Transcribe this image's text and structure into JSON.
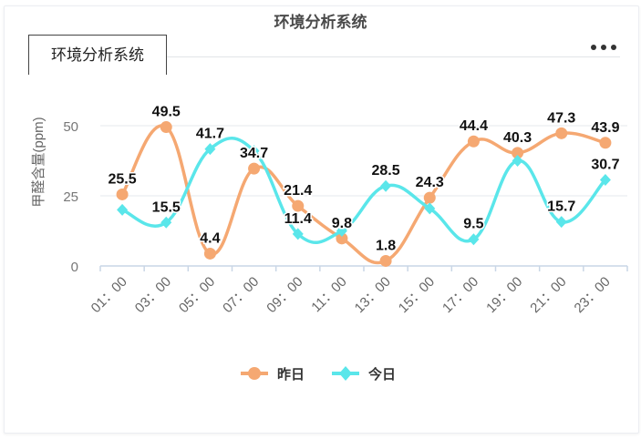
{
  "header": {
    "title": "环境分析系统"
  },
  "tab": {
    "label": "环境分析系统"
  },
  "chart_data": {
    "type": "line",
    "categories": [
      "01:00",
      "03:00",
      "05:00",
      "07:00",
      "09:00",
      "11:00",
      "13:00",
      "15:00",
      "17:00",
      "19:00",
      "21:00",
      "23:00"
    ],
    "tick_labels": [
      "01：00",
      "03：00",
      "05：00",
      "07：00",
      "09：00",
      "11：00",
      "13：00",
      "15：00",
      "17：00",
      "19：00",
      "21：00",
      "23：00"
    ],
    "ylabel": "甲醛含量(ppm)",
    "ylim": [
      0,
      50
    ],
    "yticks": [
      0,
      25,
      50
    ],
    "grid": true,
    "smooth": true,
    "legend_position": "bottom",
    "series": [
      {
        "name": "昨日",
        "color": "#f5a872",
        "marker": "circle",
        "values": [
          25.5,
          49.5,
          4.4,
          34.7,
          21.4,
          9.8,
          1.8,
          24.3,
          44.4,
          40.3,
          47.3,
          43.9
        ]
      },
      {
        "name": "今日",
        "color": "#5ae6ea",
        "marker": "diamond",
        "values": [
          20,
          15.5,
          41.7,
          41,
          11.4,
          12.5,
          28.5,
          20.5,
          9.5,
          37.5,
          15.7,
          30.7
        ]
      }
    ],
    "data_labels": [
      {
        "text": "25.5",
        "series": 0,
        "index": 0
      },
      {
        "text": "49.5",
        "series": 0,
        "index": 1
      },
      {
        "text": "4.4",
        "series": 0,
        "index": 2
      },
      {
        "text": "34.7",
        "series": 0,
        "index": 3
      },
      {
        "text": "21.4",
        "series": 0,
        "index": 4
      },
      {
        "text": "9.8",
        "series": 0,
        "index": 5
      },
      {
        "text": "1.8",
        "series": 0,
        "index": 6
      },
      {
        "text": "24.3",
        "series": 0,
        "index": 7
      },
      {
        "text": "44.4",
        "series": 0,
        "index": 8
      },
      {
        "text": "40.3",
        "series": 0,
        "index": 9
      },
      {
        "text": "47.3",
        "series": 0,
        "index": 10
      },
      {
        "text": "43.9",
        "series": 0,
        "index": 11
      },
      {
        "text": "15.5",
        "series": 1,
        "index": 1
      },
      {
        "text": "41.7",
        "series": 1,
        "index": 2
      },
      {
        "text": "11.4",
        "series": 1,
        "index": 4
      },
      {
        "text": "28.5",
        "series": 1,
        "index": 6
      },
      {
        "text": "9.5",
        "series": 1,
        "index": 8
      },
      {
        "text": "15.7",
        "series": 1,
        "index": 10
      },
      {
        "text": "30.7",
        "series": 1,
        "index": 11
      }
    ]
  }
}
